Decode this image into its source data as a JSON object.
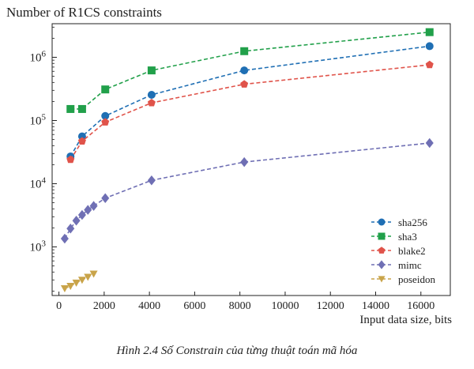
{
  "chart_data": {
    "type": "line",
    "title": "Number of R1CS constraints",
    "xlabel": "Input data size, bits",
    "ylabel": "Number of R1CS constraints",
    "xlim": [
      -300,
      17300
    ],
    "ylim": [
      170,
      3400000
    ],
    "yscale": "log",
    "x_ticks": [
      0,
      2000,
      4000,
      6000,
      8000,
      10000,
      12000,
      14000,
      16000
    ],
    "y_ticks": [
      {
        "value": 1000,
        "base": "10",
        "exp": "3"
      },
      {
        "value": 10000,
        "base": "10",
        "exp": "4"
      },
      {
        "value": 100000,
        "base": "10",
        "exp": "5"
      },
      {
        "value": 1000000,
        "base": "10",
        "exp": "6"
      }
    ],
    "legend_position": "lower-right",
    "series": [
      {
        "name": "sha256",
        "color": "#1f6fb4",
        "marker": "circle",
        "x": [
          512,
          1024,
          2048,
          4096,
          8192,
          16384
        ],
        "y": [
          27000,
          56000,
          118000,
          255000,
          620000,
          1500000
        ]
      },
      {
        "name": "sha3",
        "color": "#21a04a",
        "marker": "square",
        "x": [
          512,
          1024,
          2048,
          4096,
          8192,
          16384
        ],
        "y": [
          152000,
          152000,
          310000,
          620000,
          1250000,
          2500000
        ]
      },
      {
        "name": "blake2",
        "color": "#e0534a",
        "marker": "pentagon",
        "x": [
          512,
          1024,
          2048,
          4096,
          8192,
          16384
        ],
        "y": [
          24000,
          47000,
          94000,
          190000,
          375000,
          760000
        ]
      },
      {
        "name": "mimc",
        "color": "#6f6fb4",
        "marker": "diamond",
        "x": [
          256,
          512,
          768,
          1024,
          1280,
          1536,
          2048,
          4096,
          8192,
          16384
        ],
        "y": [
          1350,
          1950,
          2600,
          3200,
          3850,
          4450,
          5900,
          11300,
          22000,
          44000
        ]
      },
      {
        "name": "poseidon",
        "color": "#c9a44a",
        "marker": "triangle-down",
        "x": [
          256,
          512,
          768,
          1024,
          1280,
          1536
        ],
        "y": [
          220,
          240,
          270,
          300,
          335,
          375
        ]
      }
    ]
  },
  "caption": "Hình 2.4 Số Constrain của từng thuật toán mã hóa"
}
